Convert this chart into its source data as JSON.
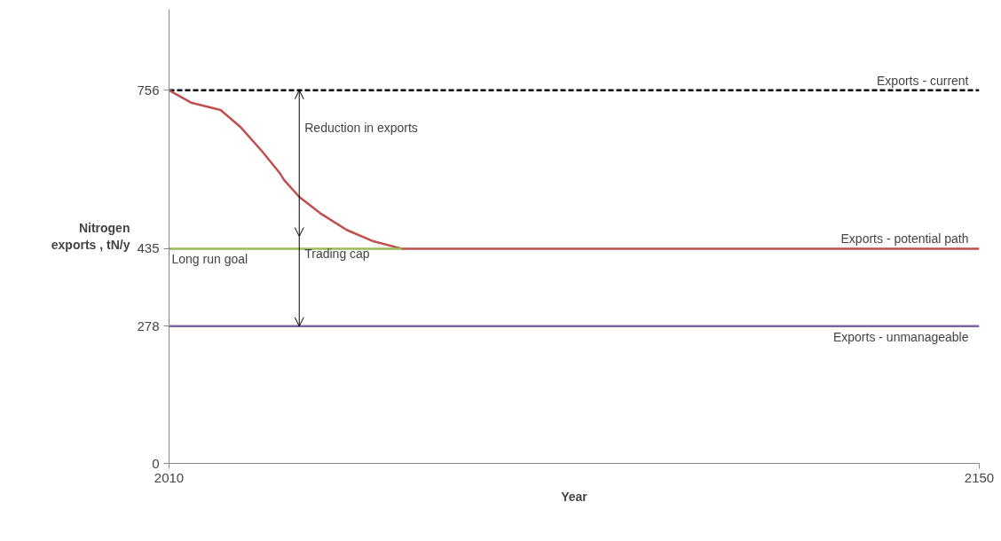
{
  "chart_data": {
    "type": "line",
    "xlabel": "Year",
    "ylabel": "Nitrogen\nexports , tN/y",
    "xlim": [
      2010,
      2150
    ],
    "xticks": [
      2010,
      2150
    ],
    "ylim": [
      0,
      920
    ],
    "yticks": [
      0,
      278,
      435,
      756
    ],
    "grid": false,
    "marker": "none",
    "series": [
      {
        "name": "Exports - current",
        "color": "#000000",
        "line_style": "dashed",
        "x": [
          2010,
          2150
        ],
        "values": [
          756,
          756
        ]
      },
      {
        "name": "Exports - potential path",
        "color": "#c0504d",
        "x": [
          2010,
          2013.8,
          2018.9,
          2022.3,
          2026.1,
          2029.2,
          2029.9,
          2032.5,
          2036.1,
          2040.7,
          2045.3,
          2050.2,
          2150
        ],
        "values": [
          756,
          731,
          716,
          682,
          632,
          587,
          574,
          540,
          507,
          473,
          450,
          435,
          435
        ]
      },
      {
        "name": "Long run goal",
        "color": "#9bbb59",
        "x": [
          2010,
          2050.2
        ],
        "values": [
          435,
          435
        ]
      },
      {
        "name": "Exports - unmanageable",
        "color": "#8064a2",
        "x": [
          2010,
          2150
        ],
        "values": [
          278,
          278
        ]
      }
    ],
    "annotations": [
      {
        "text": "Reduction in exports",
        "x": 2032.5,
        "y": 756
      },
      {
        "text": "Trading cap",
        "x": 2032.5,
        "y": 278
      }
    ]
  }
}
